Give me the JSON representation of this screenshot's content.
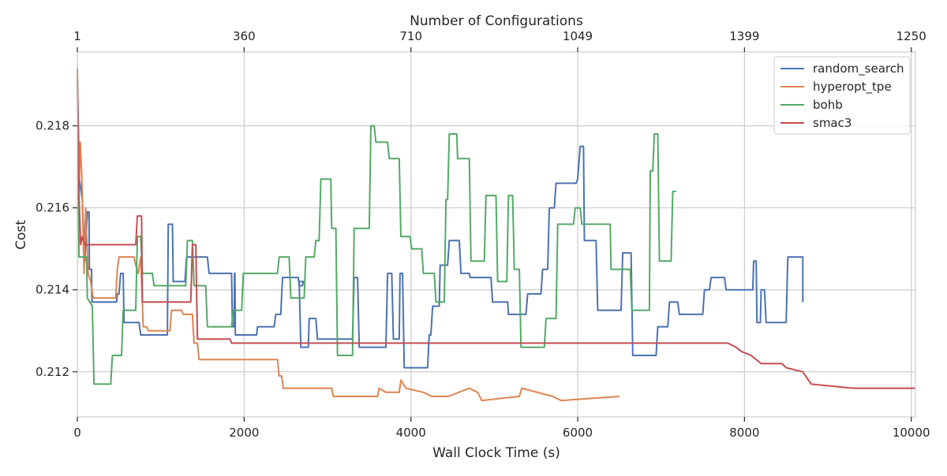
{
  "chart_data": {
    "type": "line",
    "xlabel": "Wall Clock Time (s)",
    "ylabel": "Cost",
    "top_axis_label": "Number of Configurations",
    "xlim": [
      0,
      10050
    ],
    "ylim": [
      0.2109,
      0.2198
    ],
    "x_ticks": [
      0,
      2000,
      4000,
      6000,
      8000,
      10000
    ],
    "y_ticks": [
      0.212,
      0.214,
      0.216,
      0.218
    ],
    "top_ticks": [
      {
        "x": 0,
        "label": "1"
      },
      {
        "x": 2000,
        "label": "360"
      },
      {
        "x": 4000,
        "label": "710"
      },
      {
        "x": 6000,
        "label": "1049"
      },
      {
        "x": 8000,
        "label": "1399"
      },
      {
        "x": 10000,
        "label": "1250"
      }
    ],
    "grid": true,
    "legend_position": "top-right",
    "series": [
      {
        "name": "random_search",
        "color": "#4c72b0",
        "points": [
          [
            0,
            0.2191
          ],
          [
            25,
            0.2167
          ],
          [
            60,
            0.2162
          ],
          [
            90,
            0.2147
          ],
          [
            120,
            0.2159
          ],
          [
            140,
            0.2159
          ],
          [
            145,
            0.2145
          ],
          [
            170,
            0.2145
          ],
          [
            175,
            0.2137
          ],
          [
            470,
            0.2137
          ],
          [
            480,
            0.2139
          ],
          [
            500,
            0.2139
          ],
          [
            520,
            0.2144
          ],
          [
            550,
            0.2144
          ],
          [
            560,
            0.2132
          ],
          [
            740,
            0.2132
          ],
          [
            760,
            0.2129
          ],
          [
            1080,
            0.2129
          ],
          [
            1090,
            0.2156
          ],
          [
            1140,
            0.2156
          ],
          [
            1150,
            0.2142
          ],
          [
            1290,
            0.2142
          ],
          [
            1310,
            0.2148
          ],
          [
            1560,
            0.2148
          ],
          [
            1580,
            0.2144
          ],
          [
            1850,
            0.2144
          ],
          [
            1860,
            0.2131
          ],
          [
            1880,
            0.2131
          ],
          [
            1885,
            0.2144
          ],
          [
            1890,
            0.2144
          ],
          [
            1895,
            0.2129
          ],
          [
            2150,
            0.2129
          ],
          [
            2160,
            0.2131
          ],
          [
            2360,
            0.2131
          ],
          [
            2380,
            0.2134
          ],
          [
            2440,
            0.2134
          ],
          [
            2460,
            0.2143
          ],
          [
            2650,
            0.2143
          ],
          [
            2660,
            0.2141
          ],
          [
            2700,
            0.2141
          ],
          [
            2710,
            0.2142
          ],
          [
            2660,
            0.2142
          ],
          [
            2680,
            0.2126
          ],
          [
            2770,
            0.2126
          ],
          [
            2780,
            0.2133
          ],
          [
            2860,
            0.2133
          ],
          [
            2880,
            0.2128
          ],
          [
            3300,
            0.2128
          ],
          [
            3320,
            0.2143
          ],
          [
            3360,
            0.2143
          ],
          [
            3380,
            0.2126
          ],
          [
            3700,
            0.2126
          ],
          [
            3720,
            0.2144
          ],
          [
            3770,
            0.2144
          ],
          [
            3790,
            0.2128
          ],
          [
            3860,
            0.2128
          ],
          [
            3870,
            0.2144
          ],
          [
            3900,
            0.2144
          ],
          [
            3920,
            0.2121
          ],
          [
            4200,
            0.2121
          ],
          [
            4220,
            0.2129
          ],
          [
            4240,
            0.2129
          ],
          [
            4260,
            0.2136
          ],
          [
            4340,
            0.2136
          ],
          [
            4350,
            0.2146
          ],
          [
            4440,
            0.2146
          ],
          [
            4460,
            0.2152
          ],
          [
            4580,
            0.2152
          ],
          [
            4600,
            0.2144
          ],
          [
            4700,
            0.2144
          ],
          [
            4710,
            0.2143
          ],
          [
            4960,
            0.2143
          ],
          [
            4980,
            0.2137
          ],
          [
            5160,
            0.2137
          ],
          [
            5170,
            0.2134
          ],
          [
            5380,
            0.2134
          ],
          [
            5400,
            0.2139
          ],
          [
            5560,
            0.2139
          ],
          [
            5580,
            0.2145
          ],
          [
            5640,
            0.2145
          ],
          [
            5660,
            0.216
          ],
          [
            5720,
            0.216
          ],
          [
            5740,
            0.2166
          ],
          [
            5980,
            0.2166
          ],
          [
            6000,
            0.2167
          ],
          [
            6030,
            0.2175
          ],
          [
            6070,
            0.2175
          ],
          [
            6080,
            0.2152
          ],
          [
            6220,
            0.2152
          ],
          [
            6240,
            0.2135
          ],
          [
            6520,
            0.2135
          ],
          [
            6540,
            0.2149
          ],
          [
            6640,
            0.2149
          ],
          [
            6660,
            0.2124
          ],
          [
            6940,
            0.2124
          ],
          [
            6960,
            0.2131
          ],
          [
            7080,
            0.2131
          ],
          [
            7100,
            0.2137
          ],
          [
            7200,
            0.2137
          ],
          [
            7220,
            0.2134
          ],
          [
            7500,
            0.2134
          ],
          [
            7520,
            0.214
          ],
          [
            7580,
            0.214
          ],
          [
            7600,
            0.2143
          ],
          [
            7760,
            0.2143
          ],
          [
            7780,
            0.214
          ],
          [
            8100,
            0.214
          ],
          [
            8110,
            0.2147
          ],
          [
            8140,
            0.2147
          ],
          [
            8150,
            0.2132
          ],
          [
            8190,
            0.2132
          ],
          [
            8200,
            0.214
          ],
          [
            8240,
            0.214
          ],
          [
            8260,
            0.2132
          ],
          [
            8500,
            0.2132
          ],
          [
            8520,
            0.2148
          ],
          [
            8700,
            0.2148
          ],
          [
            8700,
            0.2137
          ]
        ]
      },
      {
        "name": "hyperopt_tpe",
        "color": "#dd8452",
        "points": [
          [
            0,
            0.2193
          ],
          [
            15,
            0.216
          ],
          [
            35,
            0.2176
          ],
          [
            55,
            0.2167
          ],
          [
            80,
            0.2144
          ],
          [
            100,
            0.216
          ],
          [
            130,
            0.2144
          ],
          [
            160,
            0.2142
          ],
          [
            190,
            0.2138
          ],
          [
            460,
            0.2138
          ],
          [
            480,
            0.2145
          ],
          [
            500,
            0.2148
          ],
          [
            680,
            0.2148
          ],
          [
            700,
            0.2146
          ],
          [
            730,
            0.2144
          ],
          [
            760,
            0.2148
          ],
          [
            790,
            0.2131
          ],
          [
            830,
            0.2131
          ],
          [
            850,
            0.213
          ],
          [
            1110,
            0.213
          ],
          [
            1130,
            0.2135
          ],
          [
            1250,
            0.2135
          ],
          [
            1270,
            0.2134
          ],
          [
            1380,
            0.2134
          ],
          [
            1400,
            0.2127
          ],
          [
            1440,
            0.2127
          ],
          [
            1460,
            0.2123
          ],
          [
            2400,
            0.2123
          ],
          [
            2420,
            0.2119
          ],
          [
            2450,
            0.2119
          ],
          [
            2470,
            0.2116
          ],
          [
            3050,
            0.2116
          ],
          [
            3070,
            0.2114
          ],
          [
            3600,
            0.2114
          ],
          [
            3620,
            0.2116
          ],
          [
            3700,
            0.2115
          ],
          [
            3860,
            0.2115
          ],
          [
            3880,
            0.2118
          ],
          [
            3940,
            0.2116
          ],
          [
            4150,
            0.2115
          ],
          [
            4250,
            0.2114
          ],
          [
            4450,
            0.2114
          ],
          [
            4700,
            0.2116
          ],
          [
            4800,
            0.2115
          ],
          [
            4850,
            0.2113
          ],
          [
            5300,
            0.2114
          ],
          [
            5330,
            0.2116
          ],
          [
            5700,
            0.2114
          ],
          [
            5800,
            0.2113
          ],
          [
            6500,
            0.2114
          ]
        ]
      },
      {
        "name": "bohb",
        "color": "#55a868",
        "points": [
          [
            0,
            0.2194
          ],
          [
            20,
            0.2148
          ],
          [
            110,
            0.2148
          ],
          [
            120,
            0.2138
          ],
          [
            180,
            0.2136
          ],
          [
            200,
            0.2117
          ],
          [
            400,
            0.2117
          ],
          [
            420,
            0.2124
          ],
          [
            530,
            0.2124
          ],
          [
            550,
            0.2135
          ],
          [
            700,
            0.2135
          ],
          [
            720,
            0.2153
          ],
          [
            760,
            0.2153
          ],
          [
            780,
            0.2144
          ],
          [
            900,
            0.2144
          ],
          [
            920,
            0.2141
          ],
          [
            1300,
            0.2141
          ],
          [
            1320,
            0.2152
          ],
          [
            1380,
            0.2152
          ],
          [
            1400,
            0.2141
          ],
          [
            1540,
            0.2141
          ],
          [
            1560,
            0.2131
          ],
          [
            1850,
            0.2131
          ],
          [
            1870,
            0.2135
          ],
          [
            1970,
            0.2135
          ],
          [
            1990,
            0.2144
          ],
          [
            2400,
            0.2144
          ],
          [
            2420,
            0.2148
          ],
          [
            2540,
            0.2148
          ],
          [
            2560,
            0.2138
          ],
          [
            2720,
            0.2138
          ],
          [
            2740,
            0.2148
          ],
          [
            2840,
            0.2148
          ],
          [
            2860,
            0.2152
          ],
          [
            2900,
            0.2152
          ],
          [
            2920,
            0.2167
          ],
          [
            3040,
            0.2167
          ],
          [
            3050,
            0.2155
          ],
          [
            3100,
            0.2155
          ],
          [
            3120,
            0.2124
          ],
          [
            3300,
            0.2124
          ],
          [
            3320,
            0.2155
          ],
          [
            3500,
            0.2155
          ],
          [
            3520,
            0.218
          ],
          [
            3560,
            0.218
          ],
          [
            3580,
            0.2176
          ],
          [
            3720,
            0.2176
          ],
          [
            3740,
            0.2172
          ],
          [
            3860,
            0.2172
          ],
          [
            3880,
            0.2153
          ],
          [
            3990,
            0.2153
          ],
          [
            4010,
            0.215
          ],
          [
            4130,
            0.215
          ],
          [
            4150,
            0.2144
          ],
          [
            4280,
            0.2144
          ],
          [
            4300,
            0.2137
          ],
          [
            4400,
            0.2137
          ],
          [
            4420,
            0.2162
          ],
          [
            4440,
            0.2162
          ],
          [
            4460,
            0.2178
          ],
          [
            4550,
            0.2178
          ],
          [
            4560,
            0.2172
          ],
          [
            4700,
            0.2172
          ],
          [
            4720,
            0.2147
          ],
          [
            4880,
            0.2147
          ],
          [
            4900,
            0.2163
          ],
          [
            5020,
            0.2163
          ],
          [
            5040,
            0.2142
          ],
          [
            5150,
            0.2142
          ],
          [
            5170,
            0.2163
          ],
          [
            5220,
            0.2163
          ],
          [
            5240,
            0.2145
          ],
          [
            5300,
            0.2145
          ],
          [
            5320,
            0.2126
          ],
          [
            5600,
            0.2126
          ],
          [
            5620,
            0.2133
          ],
          [
            5740,
            0.2133
          ],
          [
            5760,
            0.2156
          ],
          [
            5950,
            0.2156
          ],
          [
            5970,
            0.216
          ],
          [
            6030,
            0.216
          ],
          [
            6050,
            0.2156
          ],
          [
            6390,
            0.2156
          ],
          [
            6400,
            0.2145
          ],
          [
            6630,
            0.2145
          ],
          [
            6650,
            0.2135
          ],
          [
            6860,
            0.2135
          ],
          [
            6870,
            0.2169
          ],
          [
            6900,
            0.2169
          ],
          [
            6920,
            0.2178
          ],
          [
            6960,
            0.2178
          ],
          [
            6980,
            0.2147
          ],
          [
            7120,
            0.2147
          ],
          [
            7140,
            0.2164
          ],
          [
            7180,
            0.2164
          ]
        ]
      },
      {
        "name": "smac3",
        "color": "#c44e52",
        "points": [
          [
            0,
            0.2194
          ],
          [
            20,
            0.2163
          ],
          [
            40,
            0.2151
          ],
          [
            60,
            0.2153
          ],
          [
            90,
            0.2151
          ],
          [
            700,
            0.2151
          ],
          [
            720,
            0.2158
          ],
          [
            770,
            0.2158
          ],
          [
            780,
            0.2137
          ],
          [
            1360,
            0.2137
          ],
          [
            1380,
            0.2151
          ],
          [
            1420,
            0.2151
          ],
          [
            1440,
            0.2128
          ],
          [
            1830,
            0.2128
          ],
          [
            1850,
            0.2127
          ],
          [
            2300,
            0.2127
          ],
          [
            2400,
            0.2127
          ],
          [
            3000,
            0.2127
          ],
          [
            4000,
            0.2127
          ],
          [
            7800,
            0.2127
          ],
          [
            7900,
            0.2126
          ],
          [
            7960,
            0.2125
          ],
          [
            8080,
            0.2124
          ],
          [
            8200,
            0.2122
          ],
          [
            8450,
            0.2122
          ],
          [
            8500,
            0.2121
          ],
          [
            8700,
            0.212
          ],
          [
            8800,
            0.2117
          ],
          [
            9300,
            0.2116
          ],
          [
            9600,
            0.2116
          ],
          [
            10050,
            0.2116
          ]
        ]
      }
    ]
  }
}
